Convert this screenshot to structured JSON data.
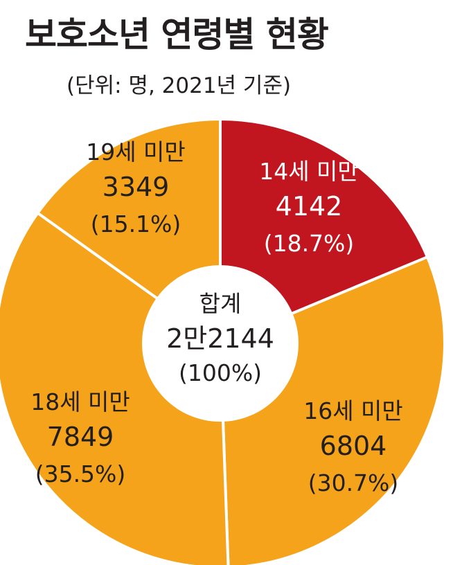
{
  "chart_data": {
    "type": "pie",
    "title": "보호소년 연령별 현황",
    "subtitle": "(단위: 명, 2021년 기준)",
    "categories": [
      "14세 미만",
      "16세 미만",
      "18세 미만",
      "19세 미만"
    ],
    "values": [
      4142,
      6804,
      7849,
      3349
    ],
    "percent_labels": [
      "(18.7%)",
      "(30.7%)",
      "(35.5%)",
      "(15.1%)"
    ],
    "value_labels": [
      "4142",
      "6804",
      "7849",
      "3349"
    ],
    "colors": [
      "#c1161f",
      "#f5a31a",
      "#f5a31a",
      "#f5a31a"
    ],
    "center": {
      "label": "합계",
      "total": "2만2144",
      "percent": "(100%)"
    }
  }
}
